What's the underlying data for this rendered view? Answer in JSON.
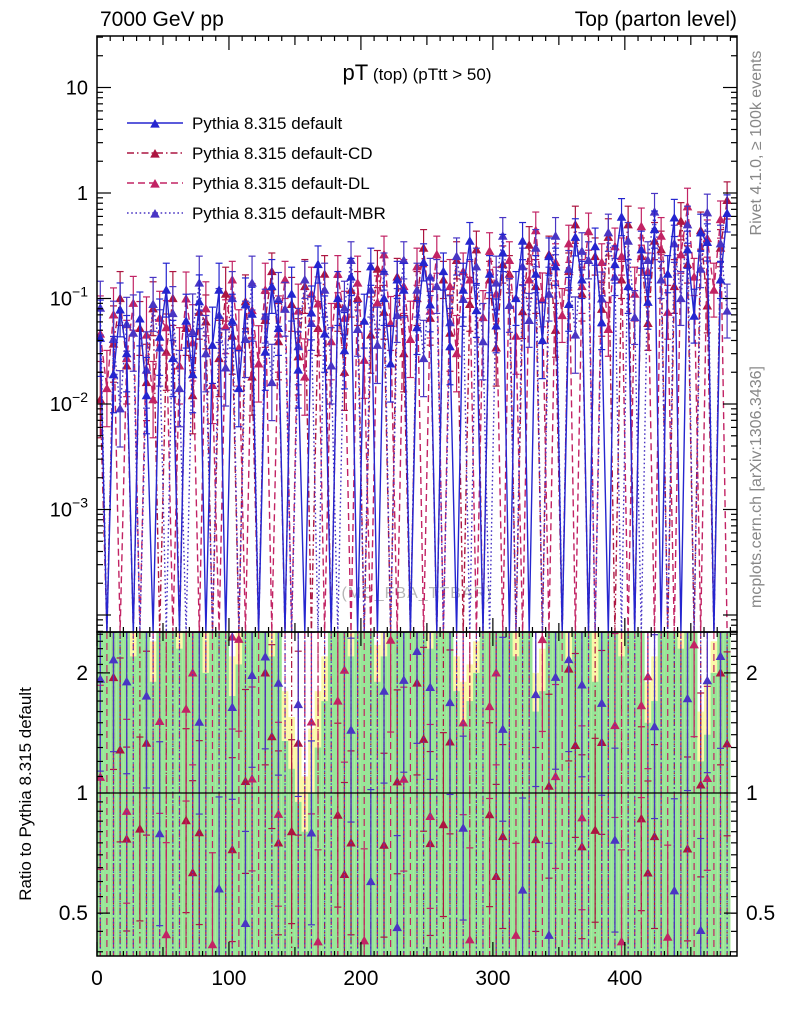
{
  "header": {
    "left": "7000 GeV pp",
    "right": "Top (parton level)"
  },
  "panel_title": {
    "main": "pT",
    "sub": " (top) (pTtt > 50)"
  },
  "watermark": "(MC_FBA_TTBAR)",
  "side_notes": {
    "top": "Rivet 4.1.0, ≥ 100k events",
    "bottom": "mcplots.cern.ch [arXiv:1306.3436]",
    "color": "#878787"
  },
  "ratio_ylabel": "Ratio to Pythia 8.315 default",
  "chart_data": {
    "type": "line",
    "title": "pT (top) (pTtt > 50)",
    "xlim": [
      0,
      485
    ],
    "bin_width": 5,
    "x_ticks": [
      0,
      100,
      200,
      300,
      400
    ],
    "ylim_main": [
      7e-05,
      30
    ],
    "y_ticks_main": [
      {
        "v": 10,
        "base": "10",
        "exp": ""
      },
      {
        "v": 1,
        "base": "1",
        "exp": ""
      },
      {
        "v": 0.1,
        "base": "10",
        "exp": "−1"
      },
      {
        "v": 0.01,
        "base": "10",
        "exp": "−2"
      },
      {
        "v": 0.001,
        "base": "10",
        "exp": "−3"
      }
    ],
    "ylim_ratio": [
      0.39,
      2.53
    ],
    "y_ticks_ratio": [
      {
        "v": 2,
        "label": "2"
      },
      {
        "v": 1,
        "label": "1"
      },
      {
        "v": 0.5,
        "label": "0.5"
      }
    ],
    "ratio_reference": 1,
    "legend_position": "top-left",
    "grid": false,
    "series": [
      {
        "name": "Pythia 8.315 default",
        "color": "#2525cf",
        "dash": "",
        "marker": "triangle",
        "values": [
          0.042,
          0,
          0.019,
          0.078,
          0.03,
          0,
          0.064,
          0.012,
          0,
          0.043,
          0.12,
          0.027,
          0,
          0.061,
          0.019,
          0.093,
          0,
          0.036,
          0.12,
          0,
          0.061,
          0.014,
          0.087,
          0.071,
          0,
          0.031,
          0.13,
          0.052,
          0,
          0.11,
          0.021,
          0,
          0.073,
          0.21,
          0.046,
          0,
          0.1,
          0.032,
          0.16,
          0,
          0.061,
          0.2,
          0,
          0.1,
          0.024,
          0.15,
          0.12,
          0,
          0.053,
          0.22,
          0.087,
          0,
          0.18,
          0.035,
          0,
          0.12,
          0.35,
          0.077,
          0,
          0.17,
          0.055,
          0.27,
          0,
          0.1,
          0.35,
          0,
          0.17,
          0.04,
          0.25,
          0.2,
          0,
          0.088,
          0.38,
          0.15,
          0,
          0.31,
          0.059,
          0,
          0.21,
          0.59,
          0.13,
          0,
          0.29,
          0.092,
          0.45,
          0,
          0.17,
          0.58,
          0,
          0.29,
          0.068,
          0.42,
          0.34,
          0,
          0.15,
          0.64
        ]
      },
      {
        "name": "Pythia 8.315 default-CD",
        "color": "#ac1540",
        "dash": "7 3 1.5 3",
        "marker": "triangle",
        "values": [
          0.011,
          0,
          0.037,
          0.1,
          0.023,
          0,
          0.052,
          0.016,
          0.08,
          0,
          0.031,
          0.1,
          0,
          0.052,
          0.012,
          0.074,
          0.06,
          0,
          0.027,
          0.11,
          0.044,
          0,
          0.093,
          0.018,
          0,
          0.062,
          0.18,
          0.039,
          0,
          0.088,
          0.028,
          0.13,
          0,
          0.052,
          0.17,
          0,
          0.088,
          0.02,
          0.12,
          0.1,
          0,
          0.045,
          0.19,
          0.074,
          0,
          0.16,
          0.03,
          0,
          0.1,
          0.3,
          0.065,
          0,
          0.15,
          0.047,
          0.23,
          0,
          0.088,
          0.29,
          0,
          0.15,
          0.034,
          0.21,
          0.17,
          0,
          0.075,
          0.32,
          0.13,
          0,
          0.26,
          0.05,
          0,
          0.18,
          0.5,
          0.11,
          0,
          0.25,
          0.079,
          0.38,
          0,
          0.15,
          0.5,
          0,
          0.25,
          0.058,
          0.35,
          0.29,
          0,
          0.13,
          0.54,
          0.21,
          0,
          0.44,
          0.085,
          0,
          0.3,
          0.85
        ]
      },
      {
        "name": "Pythia 8.315 default-DL",
        "color": "#c22364",
        "dash": "7 4",
        "marker": "triangle",
        "values": [
          0.046,
          0.014,
          0.07,
          0,
          0.027,
          0.09,
          0,
          0.045,
          0.011,
          0.065,
          0.053,
          0,
          0.023,
          0.099,
          0.038,
          0,
          0.08,
          0.015,
          0,
          0.054,
          0.15,
          0.034,
          0,
          0.077,
          0.024,
          0.12,
          0,
          0.046,
          0.15,
          0,
          0.076,
          0.018,
          0.11,
          0.089,
          0,
          0.039,
          0.17,
          0.065,
          0,
          0.14,
          0.026,
          0,
          0.091,
          0.26,
          0.058,
          0,
          0.13,
          0.041,
          0.2,
          0,
          0.076,
          0.26,
          0,
          0.13,
          0.03,
          0.18,
          0.15,
          0,
          0.066,
          0.28,
          0.11,
          0,
          0.23,
          0.044,
          0,
          0.15,
          0.44,
          0.097,
          0,
          0.22,
          0.069,
          0.33,
          0,
          0.13,
          0.43,
          0,
          0.22,
          0.051,
          0.31,
          0.25,
          0,
          0.11,
          0.48,
          0.18,
          0,
          0.39,
          0.074,
          0,
          0.26,
          0.74,
          0.16,
          0,
          0.37,
          0.12,
          0.56,
          0
        ]
      },
      {
        "name": "Pythia 8.315 default-MBR",
        "color": "#4935c4",
        "dash": "1.6 2.6",
        "marker": "triangle",
        "values": [
          0.081,
          0,
          0.041,
          0.009,
          0.057,
          0.047,
          0,
          0.021,
          0.088,
          0.034,
          0,
          0.072,
          0.014,
          0,
          0.048,
          0.14,
          0.03,
          0,
          0.069,
          0.022,
          0.1,
          0,
          0.041,
          0.14,
          0,
          0.068,
          0.016,
          0.098,
          0.079,
          0,
          0.035,
          0.15,
          0.058,
          0,
          0.12,
          0.023,
          0,
          0.081,
          0.23,
          0.051,
          0,
          0.12,
          0.036,
          0.18,
          0,
          0.069,
          0.23,
          0,
          0.12,
          0.027,
          0.16,
          0.13,
          0,
          0.059,
          0.25,
          0.098,
          0,
          0.2,
          0.039,
          0,
          0.14,
          0.39,
          0.086,
          0,
          0.2,
          0.062,
          0.3,
          0,
          0.11,
          0.39,
          0,
          0.19,
          0.045,
          0.28,
          0.23,
          0,
          0.099,
          0.42,
          0.16,
          0,
          0.35,
          0.066,
          0,
          0.23,
          0.66,
          0.15,
          0,
          0.33,
          0.1,
          0.5,
          0,
          0.19,
          0.65,
          0,
          0.33,
          0.076
        ]
      }
    ],
    "bands": {
      "green_color": "#98e698",
      "yellow_color": "#fbf8a8",
      "green_top": [
        2.53,
        2.53,
        2.53,
        2.53,
        2.53,
        2.2,
        2.53,
        2.53,
        1.9,
        2.53,
        2.53,
        2.53,
        2.3,
        2.53,
        2.53,
        2.53,
        2.0,
        2.53,
        2.53,
        2.53,
        1.75,
        2.1,
        2.53,
        2.53,
        2.53,
        2.53,
        2.2,
        2.53,
        1.35,
        1.15,
        0.95,
        0.8,
        1.0,
        1.3,
        1.7,
        2.53,
        2.53,
        2.53,
        2.2,
        2.53,
        2.53,
        2.53,
        1.9,
        2.2,
        2.53,
        2.53,
        2.53,
        2.53,
        2.53,
        2.53,
        2.3,
        2.53,
        2.53,
        2.53,
        1.8,
        1.5,
        1.7,
        2.0,
        2.53,
        2.53,
        2.53,
        2.53,
        2.53,
        2.2,
        2.53,
        2.53,
        1.6,
        1.8,
        2.53,
        2.53,
        2.53,
        2.1,
        2.53,
        2.53,
        2.53,
        1.9,
        2.53,
        2.53,
        2.53,
        2.2,
        2.53,
        2.53,
        2.53,
        1.5,
        1.7,
        2.53,
        2.53,
        2.53,
        2.3,
        2.53,
        2.53,
        1.2,
        1.4,
        2.0,
        2.53,
        2.53
      ],
      "yellow_top": [
        2.53,
        2.53,
        2.53,
        2.53,
        2.53,
        2.53,
        2.53,
        2.53,
        2.4,
        2.53,
        2.53,
        2.53,
        2.53,
        2.53,
        2.53,
        2.53,
        2.53,
        2.53,
        2.53,
        2.53,
        2.2,
        2.53,
        2.53,
        2.53,
        2.53,
        2.53,
        2.53,
        2.53,
        1.8,
        1.55,
        1.3,
        1.1,
        1.45,
        1.8,
        2.2,
        2.53,
        2.53,
        2.53,
        2.53,
        2.53,
        2.53,
        2.53,
        2.35,
        2.53,
        2.53,
        2.53,
        2.53,
        2.53,
        2.53,
        2.53,
        2.53,
        2.53,
        2.53,
        2.53,
        2.2,
        1.9,
        2.1,
        2.4,
        2.53,
        2.53,
        2.53,
        2.53,
        2.53,
        2.53,
        2.53,
        2.53,
        2.0,
        2.3,
        2.53,
        2.53,
        2.53,
        2.53,
        2.53,
        2.53,
        2.53,
        2.53,
        2.53,
        2.53,
        2.53,
        2.53,
        2.53,
        2.53,
        2.53,
        1.9,
        2.2,
        2.53,
        2.53,
        2.53,
        2.53,
        2.53,
        2.53,
        1.6,
        1.9,
        2.4,
        2.53,
        2.53
      ]
    }
  }
}
